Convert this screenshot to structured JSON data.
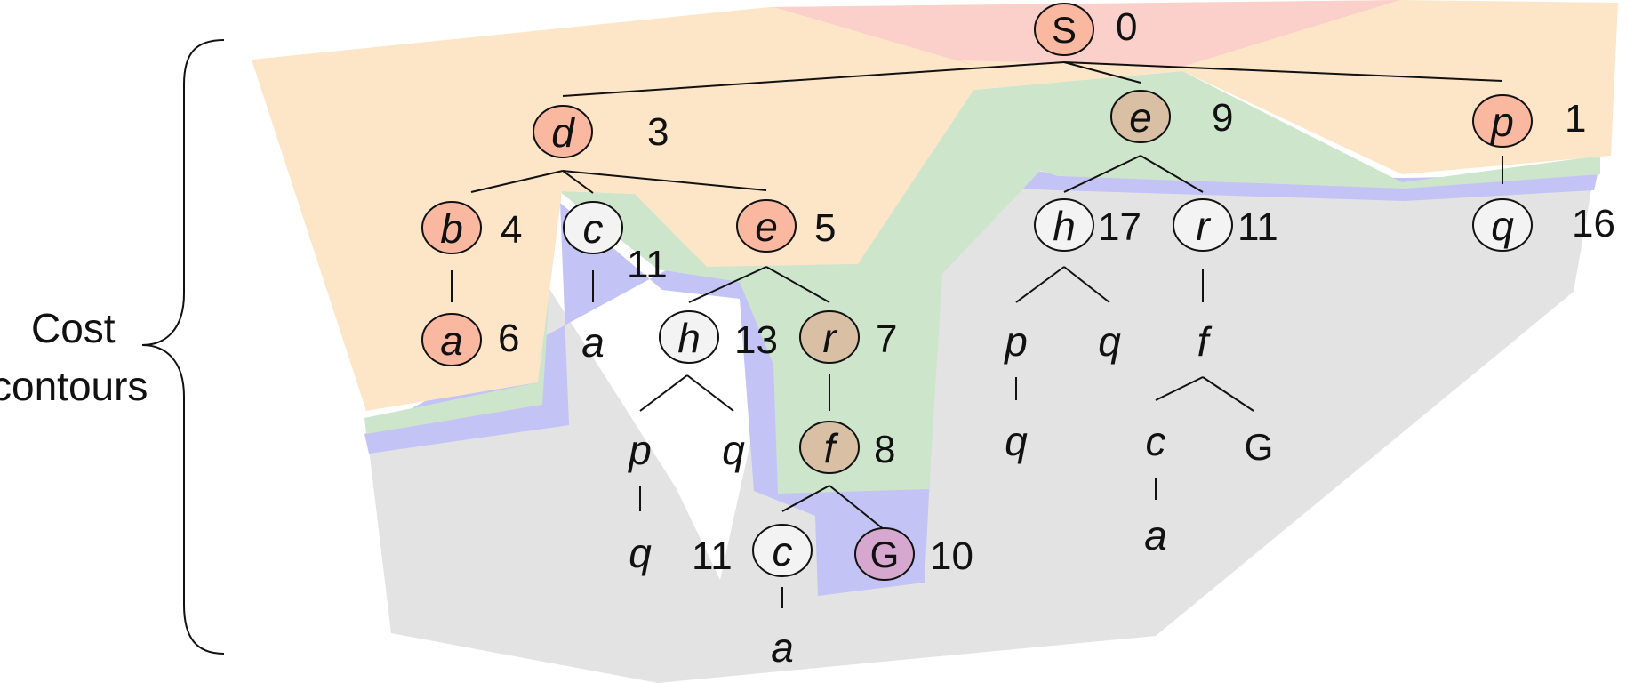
{
  "side_label": [
    "Cost",
    "contours"
  ],
  "colors": {
    "contour_red": "#fbd0cb",
    "contour_orange": "#fde6c7",
    "contour_green": "#cde5cb",
    "contour_blue": "#c3c3f6",
    "contour_gray": "#e3e3e3",
    "node_orange": "#fbb8a0",
    "node_tan": "#d9c0a4",
    "node_goal": "#d7a8cf",
    "node_white": "#f3f3f3"
  },
  "nodes": [
    {
      "id": "S",
      "label": "S",
      "cost": "0",
      "fill": "orange"
    },
    {
      "id": "d",
      "label": "d",
      "cost": "3"
    },
    {
      "id": "e1",
      "label": "e",
      "cost": "9"
    },
    {
      "id": "p1",
      "label": "p",
      "cost": "1"
    },
    {
      "id": "b",
      "label": "b",
      "cost": "4"
    },
    {
      "id": "c1",
      "label": "c",
      "cost": "11"
    },
    {
      "id": "e2",
      "label": "e",
      "cost": "5"
    },
    {
      "id": "h1",
      "label": "h",
      "cost": "17"
    },
    {
      "id": "r1",
      "label": "r",
      "cost": "11"
    },
    {
      "id": "q1",
      "label": "q",
      "cost": "16"
    },
    {
      "id": "a1",
      "label": "a",
      "cost": "6"
    },
    {
      "id": "a2",
      "label": "a"
    },
    {
      "id": "h2",
      "label": "h",
      "cost": "13"
    },
    {
      "id": "r2",
      "label": "r",
      "cost": "7"
    },
    {
      "id": "p2",
      "label": "p"
    },
    {
      "id": "q2",
      "label": "q"
    },
    {
      "id": "f1",
      "label": "f"
    },
    {
      "id": "p3",
      "label": "p"
    },
    {
      "id": "q3",
      "label": "q"
    },
    {
      "id": "f2",
      "label": "f",
      "cost": "8"
    },
    {
      "id": "q4",
      "label": "q"
    },
    {
      "id": "c2",
      "label": "c"
    },
    {
      "id": "G1",
      "label": "G"
    },
    {
      "id": "q5",
      "label": "q"
    },
    {
      "id": "c3",
      "label": "c",
      "cost": "11"
    },
    {
      "id": "G2",
      "label": "G",
      "cost": "10"
    },
    {
      "id": "a3",
      "label": "a"
    },
    {
      "id": "a4",
      "label": "a"
    }
  ]
}
